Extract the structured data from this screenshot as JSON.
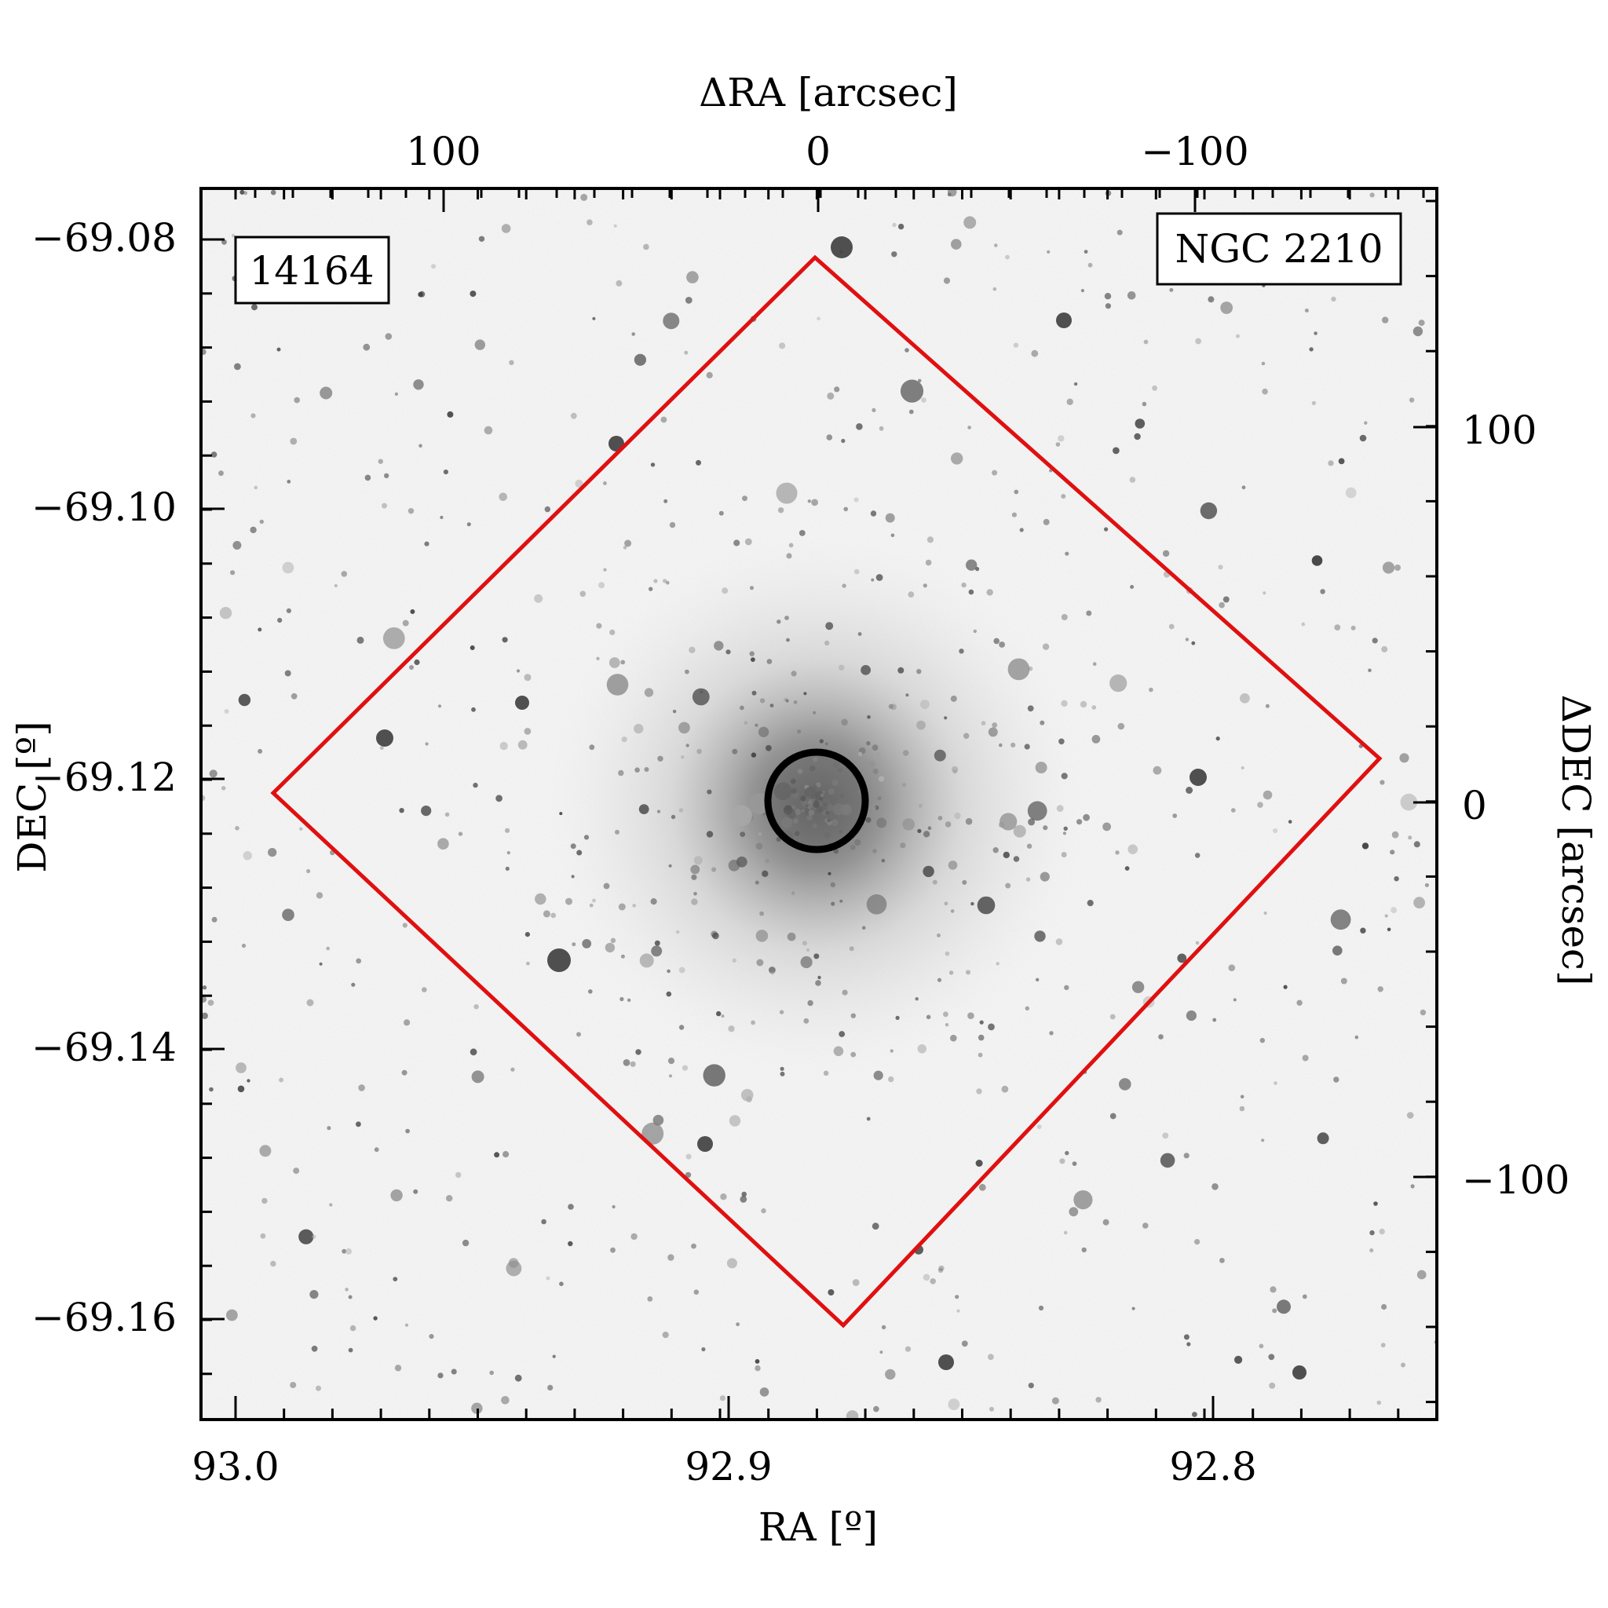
{
  "figure": {
    "top_axis_label": "ΔRA [arcsec]",
    "bottom_axis_label": "RA [º]",
    "left_axis_label": "DEC [º]",
    "right_axis_label": "ΔDEC [arcsec]",
    "top_ticks": [
      "100",
      "0",
      "−100"
    ],
    "bottom_ticks": [
      "93.0",
      "92.9",
      "92.8"
    ],
    "left_ticks": [
      "−69.08",
      "−69.10",
      "−69.12",
      "−69.14",
      "−69.16"
    ],
    "right_ticks": [
      "100",
      "0",
      "−100"
    ],
    "id_label": "14164",
    "cluster_name": "NGC 2210"
  },
  "colors": {
    "footprint": "#e01010",
    "id_text": "#e01010",
    "core_circle": "#000000"
  }
}
